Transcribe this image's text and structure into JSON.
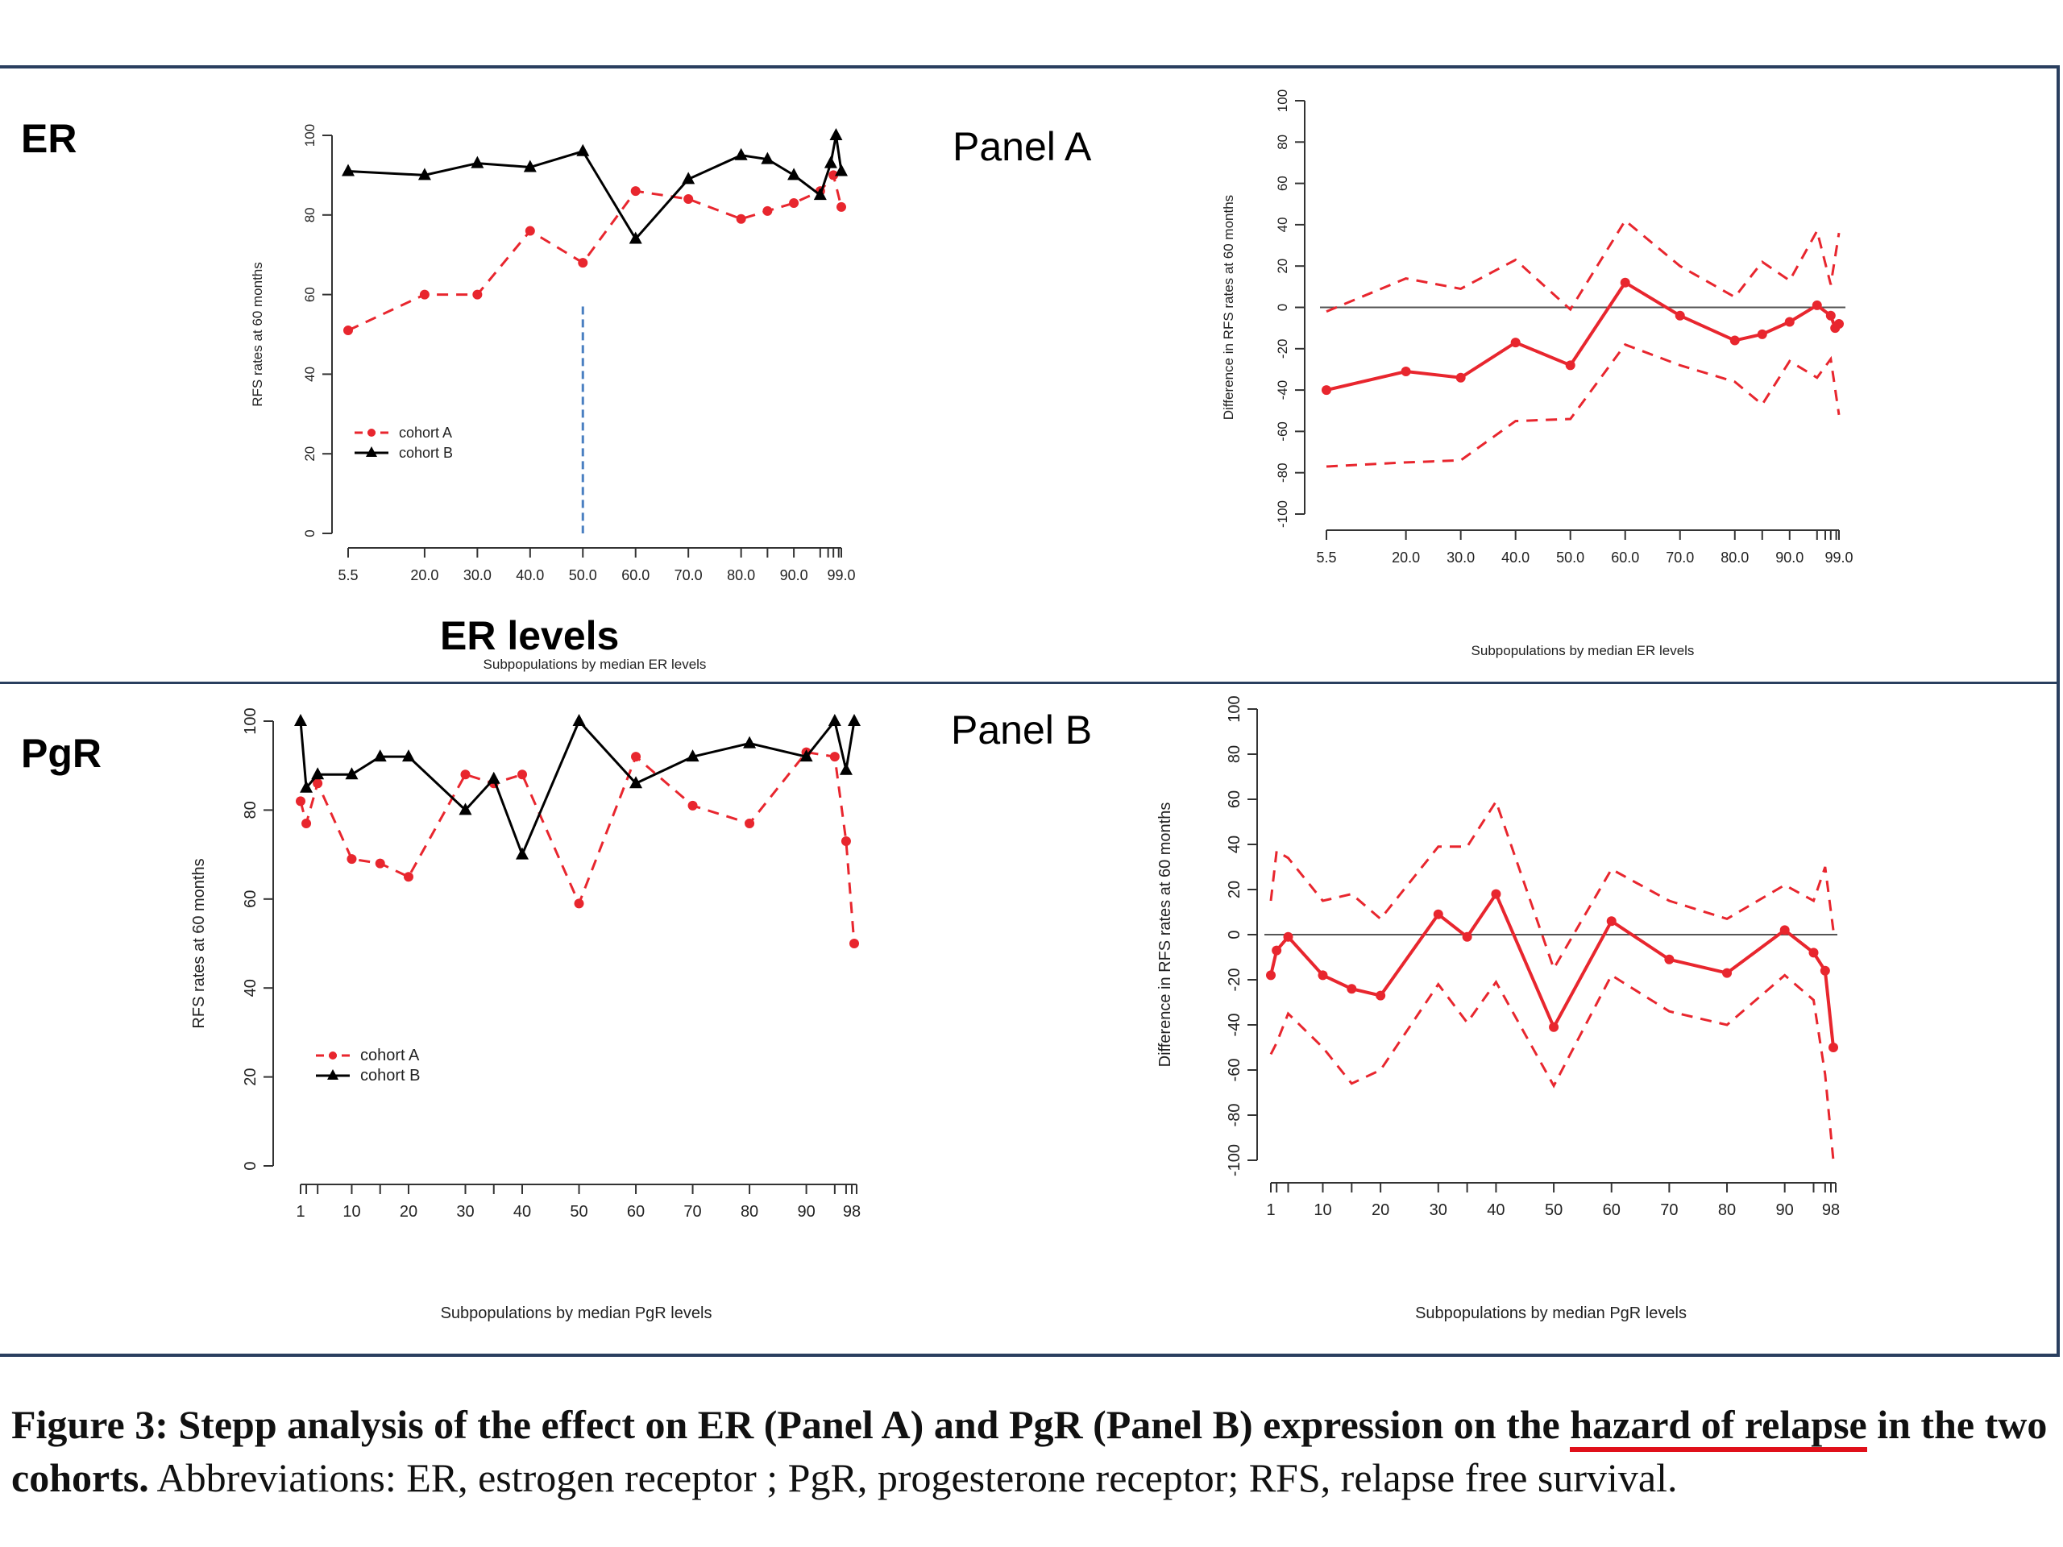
{
  "labels": {
    "er": "ER",
    "pgr": "PgR",
    "panel_a": "Panel A",
    "panel_b": "Panel B",
    "er_levels": "ER levels"
  },
  "caption": {
    "bold_start": "Figure 3: Stepp analysis of the effect on ER (Panel A) and PgR (Panel B) expression on the ",
    "bold_highlight": "hazard of relapse",
    "bold_end": " in the two cohorts.",
    "normal": " Abbreviations: ER, estrogen receptor ; PgR, progesterone receptor; RFS, relapse free survival."
  },
  "colors": {
    "cohort_a": "#e8262e",
    "cohort_b": "#000000",
    "reference_line": "#4a7fc1",
    "zero_line": "#555555",
    "frame": "#2a3f5f"
  },
  "chart_data": [
    {
      "id": "er-rfs",
      "type": "line",
      "xlabel": "Subpopulations by median ER levels",
      "ylabel": "RFS rates at 60 months",
      "ylim": [
        0,
        100
      ],
      "yticks": [
        0,
        20,
        40,
        60,
        80,
        100
      ],
      "xlim": [
        5.5,
        99.0
      ],
      "xticks": [
        5.5,
        20.0,
        30.0,
        40.0,
        50.0,
        60.0,
        70.0,
        80.0,
        90.0,
        99.0
      ],
      "xtick_labels": [
        "5.5",
        "20.0",
        "30.0",
        "40.0",
        "50.0",
        "60.0",
        "70.0",
        "80.0",
        "90.0",
        "99.0"
      ],
      "minor_xticks": [
        85,
        95,
        96.5,
        97.5,
        98.5
      ],
      "reference_x": 50,
      "legend": "bottom-left",
      "series": [
        {
          "name": "cohort A",
          "style": "dashed",
          "marker": "circle",
          "x": [
            5.5,
            20,
            30,
            40,
            50,
            60,
            70,
            80,
            85,
            90,
            95,
            97.5,
            99
          ],
          "y": [
            51,
            60,
            60,
            76,
            68,
            86,
            84,
            79,
            81,
            83,
            86,
            90,
            82
          ]
        },
        {
          "name": "cohort B",
          "style": "solid",
          "marker": "triangle",
          "x": [
            5.5,
            20,
            30,
            40,
            50,
            60,
            70,
            80,
            85,
            90,
            95,
            97,
            98,
            99
          ],
          "y": [
            91,
            90,
            93,
            92,
            96,
            74,
            89,
            95,
            94,
            90,
            85,
            93,
            100,
            91
          ]
        }
      ]
    },
    {
      "id": "er-diff",
      "type": "line",
      "xlabel": "Subpopulations by median ER levels",
      "ylabel": "Difference in RFS rates at 60 months",
      "ylim": [
        -100,
        100
      ],
      "yticks": [
        -100,
        -80,
        -60,
        -40,
        -20,
        0,
        20,
        40,
        60,
        80,
        100
      ],
      "xlim": [
        5.5,
        99.0
      ],
      "xticks": [
        5.5,
        20.0,
        30.0,
        40.0,
        50.0,
        60.0,
        70.0,
        80.0,
        90.0,
        99.0
      ],
      "xtick_labels": [
        "5.5",
        "20.0",
        "30.0",
        "40.0",
        "50.0",
        "60.0",
        "70.0",
        "80.0",
        "90.0",
        "99.0"
      ],
      "minor_xticks": [
        85,
        95,
        96.5,
        97.5,
        98.5
      ],
      "series": [
        {
          "role": "estimate",
          "style": "solid",
          "marker": "circle",
          "x": [
            5.5,
            20,
            30,
            40,
            50,
            60,
            70,
            80,
            85,
            90,
            95,
            97.5,
            98.3,
            99
          ],
          "y": [
            -40,
            -31,
            -34,
            -17,
            -28,
            12,
            -4,
            -16,
            -13,
            -7,
            1,
            -4,
            -10,
            -8
          ]
        },
        {
          "role": "upper band",
          "style": "dashed",
          "marker": "none",
          "x": [
            5.5,
            20,
            30,
            40,
            50,
            60,
            70,
            80,
            85,
            90,
            95,
            97.5,
            99
          ],
          "y": [
            -2,
            14,
            9,
            23,
            -1,
            42,
            20,
            5,
            22,
            13,
            37,
            11,
            36
          ]
        },
        {
          "role": "lower band",
          "style": "dashed",
          "marker": "none",
          "x": [
            5.5,
            20,
            30,
            40,
            50,
            60,
            70,
            80,
            85,
            90,
            95,
            97.5,
            99
          ],
          "y": [
            -77,
            -75,
            -74,
            -55,
            -54,
            -18,
            -28,
            -36,
            -47,
            -26,
            -34,
            -25,
            -52
          ]
        }
      ]
    },
    {
      "id": "pgr-rfs",
      "type": "line",
      "xlabel": "Subpopulations by median PgR levels",
      "ylabel": "RFS rates at 60 months",
      "ylim": [
        0,
        100
      ],
      "yticks": [
        0,
        20,
        40,
        60,
        80,
        100
      ],
      "xlim": [
        1,
        98
      ],
      "xticks": [
        1,
        10,
        20,
        30,
        40,
        50,
        60,
        70,
        80,
        90,
        98
      ],
      "xtick_labels": [
        "1",
        "10",
        "20",
        "30",
        "40",
        "50",
        "60",
        "70",
        "80",
        "90",
        "98"
      ],
      "minor_xticks": [
        2,
        4,
        15,
        35,
        95,
        97,
        100
      ],
      "legend": "bottom-left",
      "series": [
        {
          "name": "cohort A",
          "style": "dashed",
          "marker": "circle",
          "x": [
            1,
            2,
            4,
            10,
            15,
            20,
            30,
            35,
            40,
            50,
            60,
            70,
            80,
            90,
            95,
            97,
            99
          ],
          "y": [
            82,
            77,
            86,
            69,
            68,
            65,
            88,
            86,
            88,
            59,
            92,
            81,
            77,
            93,
            92,
            73,
            50
          ]
        },
        {
          "name": "cohort B",
          "style": "solid",
          "marker": "triangle",
          "x": [
            1,
            2,
            4,
            10,
            15,
            20,
            30,
            35,
            40,
            50,
            60,
            70,
            80,
            90,
            95,
            97,
            99
          ],
          "y": [
            100,
            85,
            88,
            88,
            92,
            92,
            80,
            87,
            70,
            100,
            86,
            92,
            95,
            92,
            100,
            89,
            100
          ]
        }
      ]
    },
    {
      "id": "pgr-diff",
      "type": "line",
      "xlabel": "Subpopulations by median PgR levels",
      "ylabel": "Difference in RFS rates at 60 months",
      "ylim": [
        -100,
        100
      ],
      "yticks": [
        -100,
        -80,
        -60,
        -40,
        -20,
        0,
        20,
        40,
        60,
        80,
        100
      ],
      "xlim": [
        1,
        98
      ],
      "xticks": [
        1,
        10,
        20,
        30,
        40,
        50,
        60,
        70,
        80,
        90,
        98
      ],
      "xtick_labels": [
        "1",
        "10",
        "20",
        "30",
        "40",
        "50",
        "60",
        "70",
        "80",
        "90",
        "98"
      ],
      "minor_xticks": [
        2,
        4,
        15,
        35,
        95,
        97,
        100
      ],
      "series": [
        {
          "role": "estimate",
          "style": "solid",
          "marker": "circle",
          "x": [
            1,
            2,
            4,
            10,
            15,
            20,
            30,
            35,
            40,
            50,
            60,
            70,
            80,
            90,
            95,
            97,
            99
          ],
          "y": [
            -18,
            -7,
            -1,
            -18,
            -24,
            -27,
            9,
            -1,
            18,
            -41,
            6,
            -11,
            -17,
            2,
            -8,
            -16,
            -50
          ]
        },
        {
          "role": "upper band",
          "style": "dashed",
          "marker": "none",
          "x": [
            1,
            2,
            4,
            10,
            15,
            20,
            30,
            35,
            40,
            50,
            60,
            70,
            80,
            90,
            95,
            97,
            99
          ],
          "y": [
            15,
            37,
            34,
            15,
            18,
            7,
            39,
            39,
            59,
            -15,
            29,
            15,
            7,
            22,
            15,
            30,
            2
          ]
        },
        {
          "role": "lower band",
          "style": "dashed",
          "marker": "none",
          "x": [
            1,
            2,
            4,
            10,
            15,
            20,
            30,
            35,
            40,
            50,
            60,
            70,
            80,
            90,
            95,
            97,
            99
          ],
          "y": [
            -53,
            -48,
            -35,
            -50,
            -66,
            -60,
            -22,
            -39,
            -21,
            -67,
            -18,
            -34,
            -40,
            -18,
            -29,
            -62,
            -100
          ]
        }
      ]
    }
  ]
}
